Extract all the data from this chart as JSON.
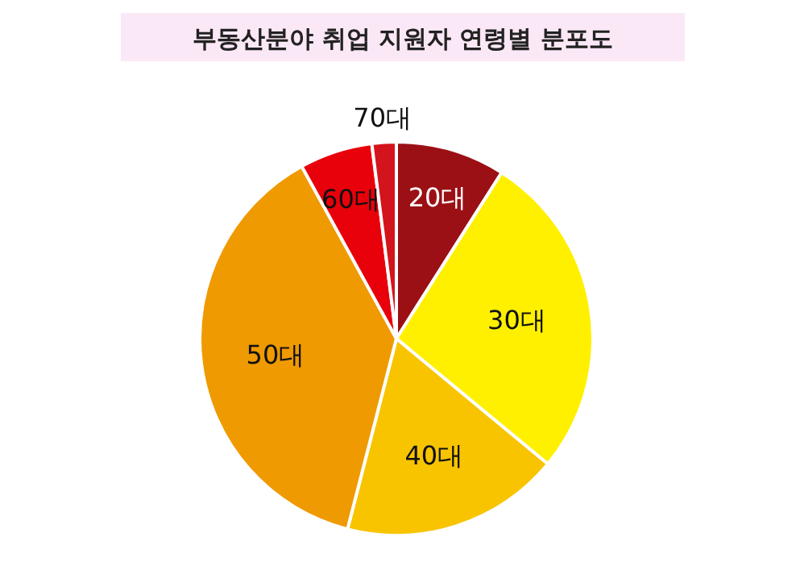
{
  "chart_data": {
    "type": "pie",
    "title": "부동산분야 취업 지원자 연령별 분포도",
    "categories": [
      "20대",
      "30대",
      "40대",
      "50대",
      "60대",
      "70대"
    ],
    "values": [
      9,
      27,
      18,
      38,
      6,
      2
    ],
    "colors": [
      "#9b1015",
      "#fff000",
      "#f8c400",
      "#ef9a00",
      "#e8000a",
      "#d4141c"
    ]
  }
}
